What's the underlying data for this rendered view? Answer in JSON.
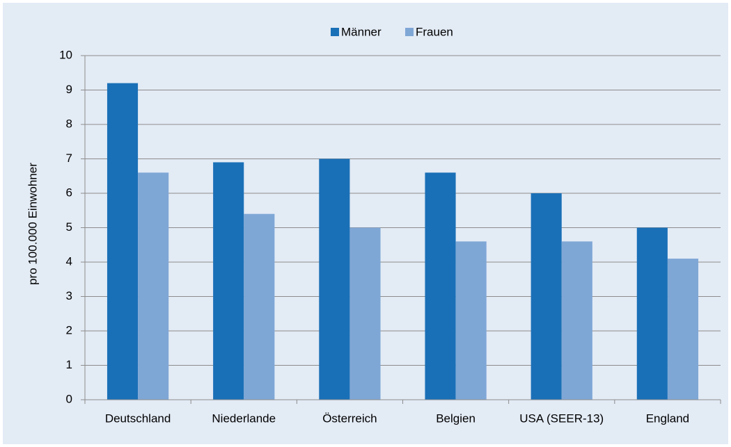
{
  "chart_data": {
    "type": "bar",
    "categories": [
      "Deutschland",
      "Niederlande",
      "Österreich",
      "Belgien",
      "USA (SEER-13)",
      "England"
    ],
    "series": [
      {
        "name": "Männer",
        "color": "#1a70b7",
        "values": [
          9.2,
          6.9,
          7.0,
          6.6,
          6.0,
          5.0
        ]
      },
      {
        "name": "Frauen",
        "color": "#7fa7d6",
        "values": [
          6.6,
          5.4,
          5.0,
          4.6,
          4.6,
          4.1
        ]
      }
    ],
    "ylabel": "pro 100.000 Einwohner",
    "ylim": [
      0,
      10
    ],
    "yticks": [
      0,
      1,
      2,
      3,
      4,
      5,
      6,
      7,
      8,
      9,
      10
    ],
    "grid": true,
    "legend": "top"
  }
}
